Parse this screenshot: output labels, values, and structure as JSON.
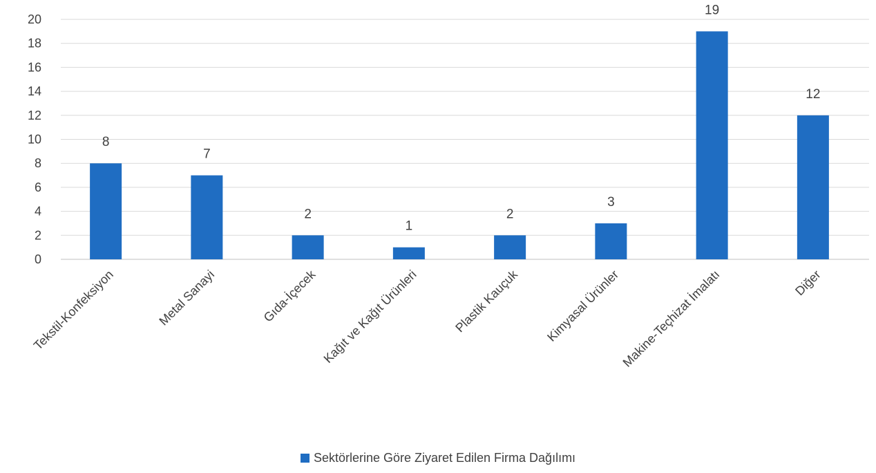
{
  "chart_data": {
    "type": "bar",
    "categories": [
      "Tekstil-Konfeksiyon",
      "Metal Sanayi",
      "Gıda-İçecek",
      "Kağıt ve Kağıt Ürünleri",
      "Plastik Kauçuk",
      "Kimyasal Ürünler",
      "Makine-Teçhizat İmalatı",
      "Diğer"
    ],
    "series": [
      {
        "name": "Sektörlerine Göre Ziyaret Edilen Firma Dağılımı",
        "values": [
          8,
          7,
          2,
          1,
          2,
          3,
          19,
          12
        ]
      }
    ],
    "data_labels": [
      "8",
      "7",
      "2",
      "1",
      "2",
      "3",
      "19",
      "12"
    ],
    "ylim": [
      0,
      20
    ],
    "y_ticks": [
      "0",
      "2",
      "4",
      "6",
      "8",
      "10",
      "12",
      "14",
      "16",
      "18",
      "20"
    ],
    "grid": true,
    "legend_position": "bottom",
    "colors": {
      "bar": "#1F6DC2",
      "grid": "#d9d9d9",
      "axis": "#bfbfbf",
      "text": "#404040"
    }
  }
}
